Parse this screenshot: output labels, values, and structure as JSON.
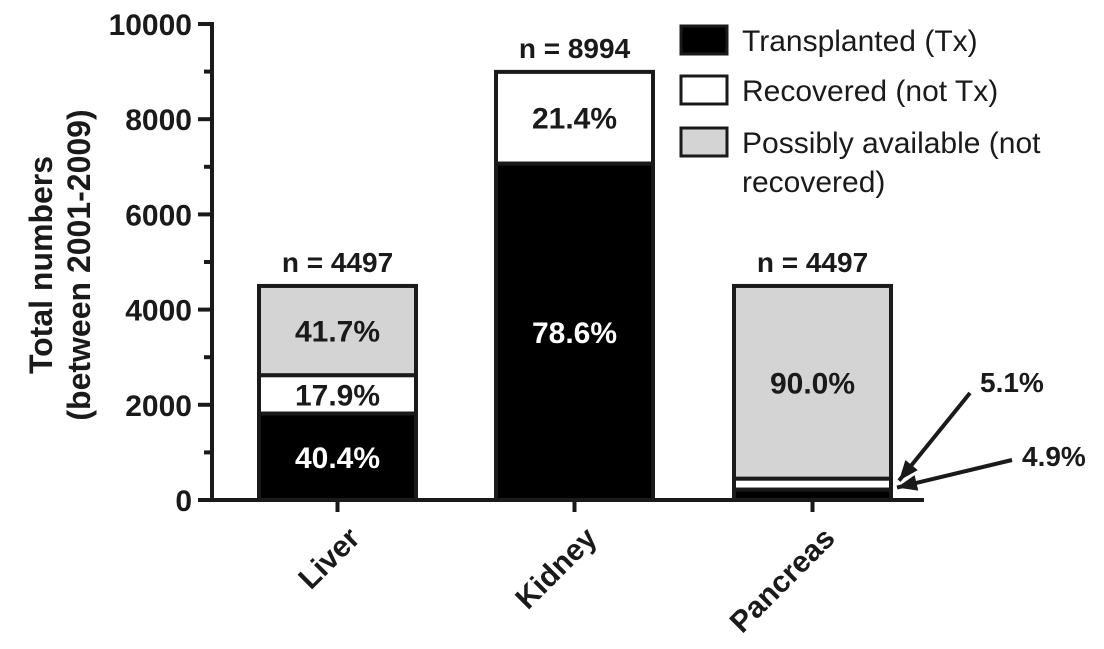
{
  "chart_data": {
    "type": "bar",
    "stacked": true,
    "ylabel": "Total numbers",
    "ylabel2": "(between 2001-2009)",
    "ylim": [
      0,
      10000
    ],
    "yticks": [
      "0",
      "2000",
      "4000",
      "6000",
      "8000",
      "10000"
    ],
    "categories": [
      "Liver",
      "Kidney",
      "Pancreas"
    ],
    "totals": [
      4497,
      8994,
      4497
    ],
    "total_labels": [
      "n = 4497",
      "n = 8994",
      "n = 4497"
    ],
    "series": [
      {
        "name": "Transplanted (Tx)",
        "color": "#000000",
        "values": [
          1817,
          7069,
          220
        ],
        "labels": [
          "40.4%",
          "78.6%",
          "4.9%"
        ]
      },
      {
        "name": "Recovered (not Tx)",
        "color": "#ffffff",
        "values": [
          805,
          1925,
          229
        ],
        "labels": [
          "17.9%",
          "21.4%",
          "5.1%"
        ]
      },
      {
        "name": "Possibly available (not recovered)",
        "color": "#d4d4d4",
        "values": [
          1875,
          0,
          4048
        ],
        "labels": [
          "41.7%",
          "",
          "90.0%"
        ]
      }
    ],
    "legend": {
      "position": "top-right",
      "items": [
        {
          "label": "Transplanted (Tx)",
          "color": "#000000"
        },
        {
          "label": "Recovered (not Tx)",
          "color": "#ffffff"
        },
        {
          "label_line1": "Possibly available (not",
          "label_line2": "recovered)",
          "color": "#d4d4d4"
        }
      ]
    },
    "callouts": [
      "5.1%",
      "4.9%"
    ],
    "grid": false
  }
}
